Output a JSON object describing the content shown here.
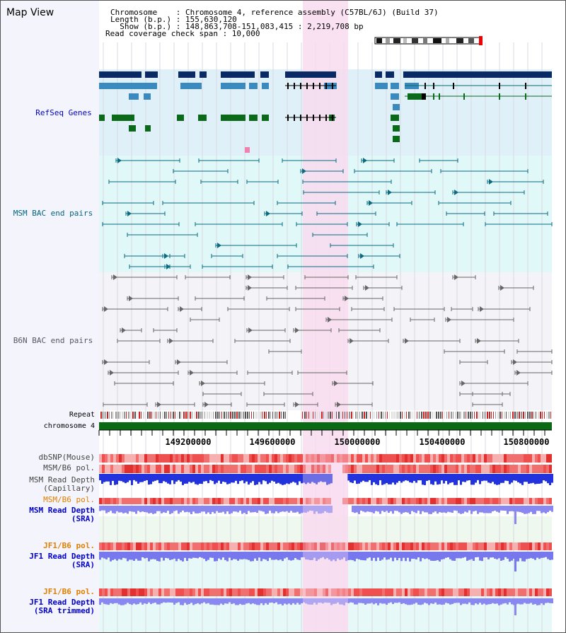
{
  "header": {
    "title": "Map View",
    "chromosome_line": "Chromosome    : Chromosome 4, reference assembly (C57BL/6J) (Build 37)",
    "length_line": "Length (b.p.) : 155,630,120",
    "show_line": "  Show (b.p.) : 148,863,708-151,083,415 : 2,219,708 bp",
    "coverage_line": "Read coverage check span : 10,000"
  },
  "tracks": {
    "refseq": "RefSeq Genes",
    "msm_bac": "MSM BAC end pairs",
    "b6n_bac": "B6N BAC end pairs",
    "repeat": "Repeat",
    "chromosome": "chromosome 4",
    "dbsnp": "dbSNP(Mouse)",
    "msm_b6_pol": "MSM/B6 pol.",
    "msm_depth_cap_1": "MSM Read Depth",
    "msm_depth_cap_2": "(Capillary)",
    "msm_b6_pol_2": "MSM/B6 pol.",
    "msm_depth_sra_1": "MSM Read Depth",
    "msm_depth_sra_2": "(SRA)",
    "jf1_b6_pol": "JF1/B6 pol.",
    "jf1_depth_sra_1": "JF1 Read Depth",
    "jf1_depth_sra_2": "(SRA)",
    "jf1_b6_pol_2": "JF1/B6 pol.",
    "jf1_depth_trim_1": "JF1 Read Depth",
    "jf1_depth_trim_2": "(SRA trimmed)"
  },
  "axis": {
    "ticks": [
      "149200000",
      "149600000",
      "150000000",
      "150400000",
      "150800000"
    ]
  },
  "colors": {
    "refseq_bg": "#dff0f8",
    "msm_bg": "#e0f8f8",
    "b6n_bg": "#f4f4f8",
    "highlight": "#f8dcf0",
    "refseq_label": "#0000cc",
    "msm_label": "#006680",
    "b6n_label": "#555566",
    "pol_label_orange": "#e08000",
    "depth_label_blue": "#0000cc"
  }
}
